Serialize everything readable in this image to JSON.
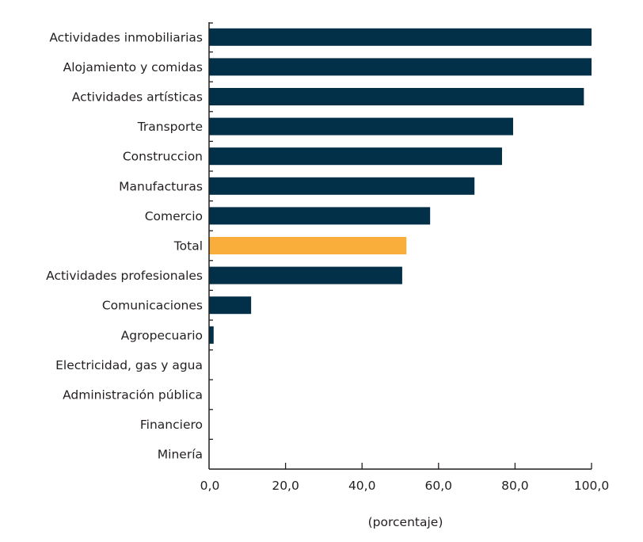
{
  "chart_data": {
    "type": "bar",
    "orientation": "horizontal",
    "title": "",
    "xlabel": "(porcentaje)",
    "ylabel": "",
    "xlim": [
      0,
      100
    ],
    "x_ticks": [
      "0,0",
      "20,0",
      "40,0",
      "60,0",
      "80,0",
      "100,0"
    ],
    "x_tick_values": [
      0,
      20,
      40,
      60,
      80,
      100
    ],
    "grid": false,
    "legend": null,
    "categories": [
      "Actividades inmobiliarias",
      "Alojamiento y comidas",
      "Actividades artísticas",
      "Transporte",
      "Construccion",
      "Manufacturas",
      "Comercio",
      "Total",
      "Actividades profesionales",
      "Comunicaciones",
      "Agropecuario",
      "Electricidad, gas y agua",
      "Administración pública",
      "Financiero",
      "Minería"
    ],
    "values": [
      100.0,
      100.0,
      98.0,
      79.5,
      76.6,
      69.4,
      57.8,
      51.6,
      50.5,
      11.0,
      1.2,
      0.0,
      0.0,
      0.0,
      0.0
    ],
    "highlight": "Total",
    "colors": {
      "default": "#033049",
      "highlight": "#f9ae3c",
      "axis": "#231f20",
      "text": "#231f20"
    }
  }
}
